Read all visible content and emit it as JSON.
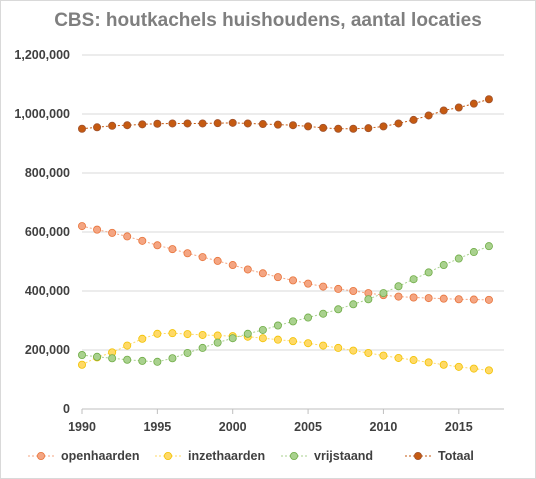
{
  "chart_data": {
    "type": "line",
    "title": "CBS: houtkachels huishoudens, aantal locaties",
    "xlabel": "",
    "ylabel": "",
    "x": [
      1990,
      1991,
      1992,
      1993,
      1994,
      1995,
      1996,
      1997,
      1998,
      1999,
      2000,
      2001,
      2002,
      2003,
      2004,
      2005,
      2006,
      2007,
      2008,
      2009,
      2010,
      2011,
      2012,
      2013,
      2014,
      2015,
      2016,
      2017
    ],
    "xlim": [
      1990,
      2018
    ],
    "xticks": [
      1990,
      1995,
      2000,
      2005,
      2010,
      2015
    ],
    "ylim": [
      0,
      1200000
    ],
    "yticks": [
      0,
      200000,
      400000,
      600000,
      800000,
      1000000,
      1200000
    ],
    "ytick_labels": [
      "0",
      "200,000",
      "400,000",
      "600,000",
      "800,000",
      "1,000,000",
      "1,200,000"
    ],
    "grid": "horizontal",
    "legend_position": "bottom",
    "series": [
      {
        "name": "openhaarden",
        "color": "#F4A582",
        "stroke": "#E8743B",
        "values": [
          620000,
          608000,
          597000,
          585000,
          570000,
          555000,
          542000,
          528000,
          515000,
          502000,
          488000,
          473000,
          460000,
          447000,
          436000,
          425000,
          415000,
          407000,
          400000,
          393000,
          386000,
          381000,
          378000,
          376000,
          374000,
          372000,
          371000,
          370000
        ]
      },
      {
        "name": "inzethaarden",
        "color": "#FFD966",
        "stroke": "#F2C200",
        "values": [
          150000,
          175000,
          192000,
          215000,
          238000,
          255000,
          257000,
          254000,
          251000,
          249000,
          247000,
          245000,
          240000,
          235000,
          230000,
          223000,
          215000,
          207000,
          198000,
          190000,
          181000,
          173000,
          166000,
          158000,
          150000,
          143000,
          137000,
          131000
        ]
      },
      {
        "name": "vrijstaand",
        "color": "#A9D18E",
        "stroke": "#70AD47",
        "values": [
          183000,
          177000,
          172000,
          167000,
          163000,
          160000,
          172000,
          190000,
          207000,
          225000,
          240000,
          255000,
          268000,
          283000,
          297000,
          310000,
          323000,
          338000,
          355000,
          372000,
          393000,
          416000,
          440000,
          463000,
          488000,
          510000,
          532000,
          552000
        ]
      },
      {
        "name": "Totaal",
        "color": "#C55A11",
        "stroke": "#A0522D",
        "values": [
          950000,
          955000,
          960000,
          962000,
          965000,
          967000,
          968000,
          968000,
          968000,
          969000,
          970000,
          968000,
          966000,
          964000,
          962000,
          958000,
          953000,
          950000,
          950000,
          952000,
          958000,
          968000,
          980000,
          995000,
          1012000,
          1022000,
          1035000,
          1050000
        ]
      }
    ]
  }
}
